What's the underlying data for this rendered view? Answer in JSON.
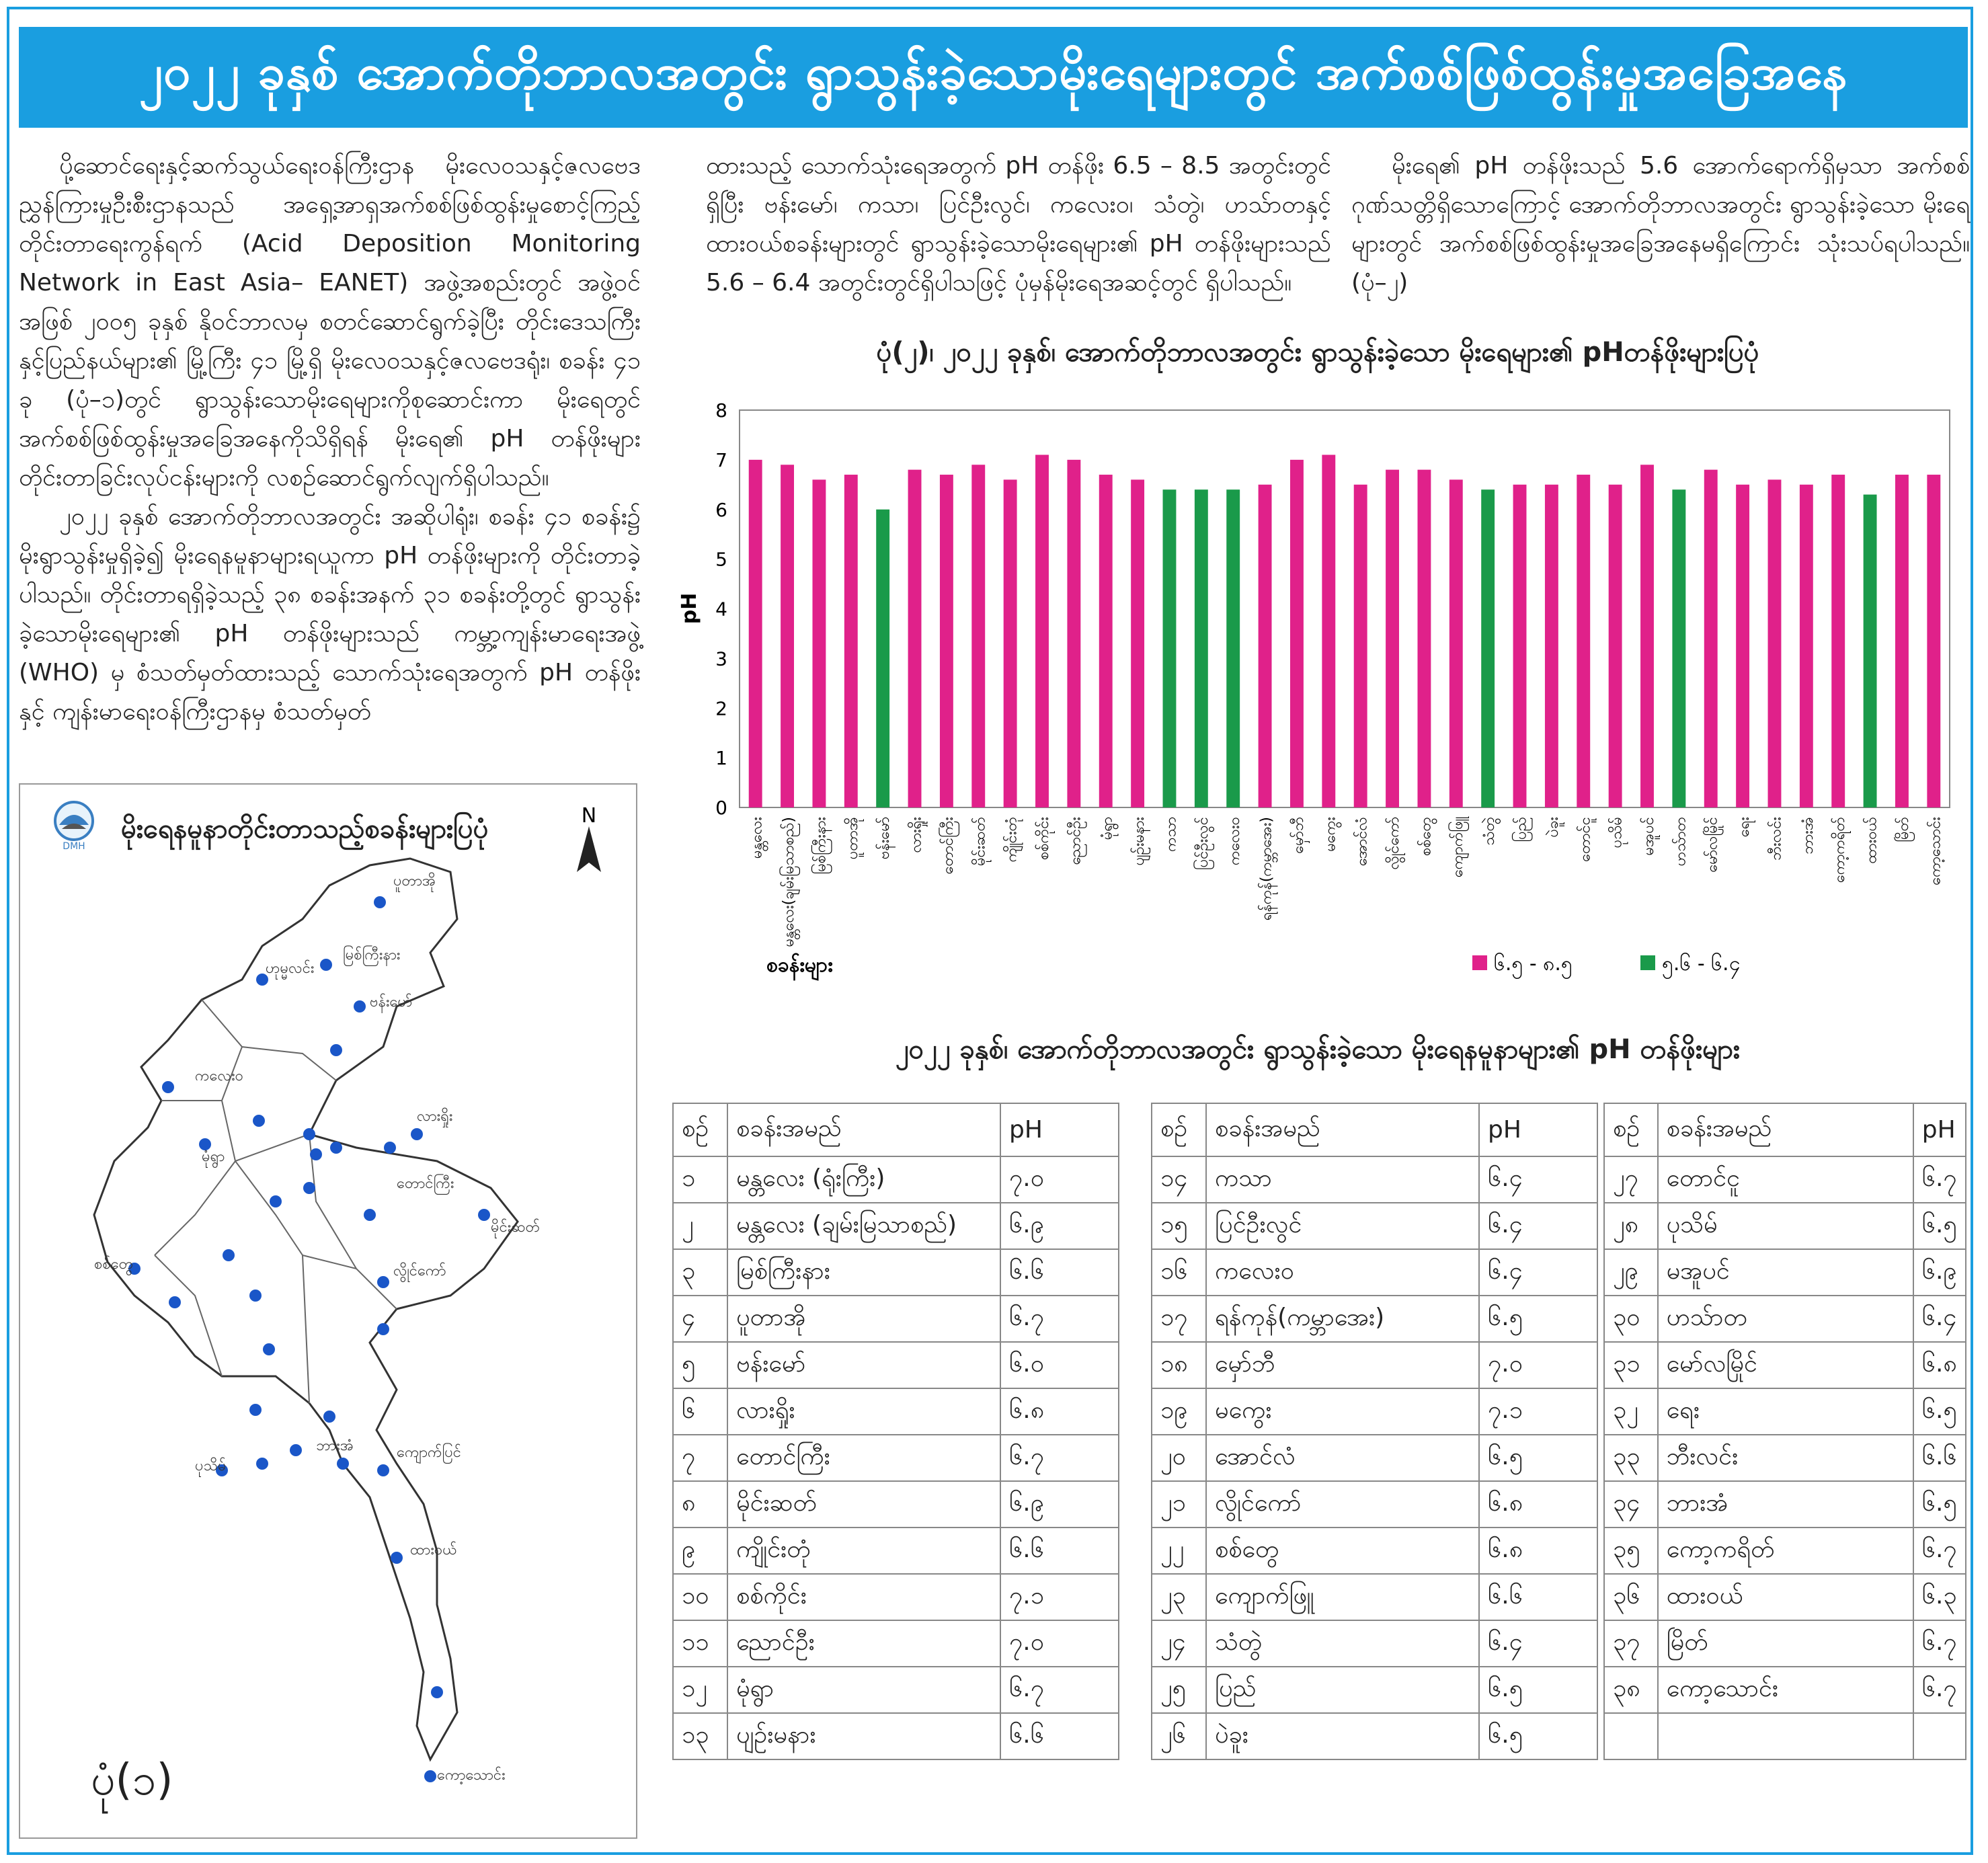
{
  "header": {
    "title": "၂၀၂၂ ခုနှစ်  အောက်တိုဘာလအတွင်း ရွာသွန်းခဲ့သောမိုးရေများတွင် အက်စစ်ဖြစ်ထွန်းမှုအခြေအနေ"
  },
  "article": {
    "col1_p1": "ပို့ဆောင်ရေးနှင့်ဆက်သွယ်ရေးဝန်ကြီးဌာန မိုးလေဝသနှင့်ဇလဗေဒညွှန်ကြားမှုဦးစီးဌာနသည် အရှေ့အာရှအက်စစ်ဖြစ်ထွန်းမှုစောင့်ကြည့်တိုင်းတာရေးကွန်ရက် (Acid Deposition Monitoring Network in East Asia– EANET) အဖွဲ့အစည်းတွင် အဖွဲ့ဝင်အဖြစ် ၂၀၀၅ ခုနှစ် နိုဝင်ဘာလမှ စတင်ဆောင်ရွက်ခဲ့ပြီး တိုင်းဒေသကြီးနှင့်ပြည်နယ်များ၏ မြို့ကြီး ၄၁ မြို့ရှိ မိုးလေဝသနှင့်ဇလဗေဒရုံး၊ စခန်း ၄၁ ခု (ပုံ–၁)တွင် ရွာသွန်းသောမိုးရေများကိုစုဆောင်းကာ မိုးရေတွင် အက်စစ်ဖြစ်ထွန်းမှုအခြေအနေကိုသိရှိရန် မိုးရေ၏ pH တန်ဖိုးများ တိုင်းတာခြင်းလုပ်ငန်းများကို လစဉ်ဆောင်ရွက်လျက်ရှိပါသည်။",
    "col1_p2": "၂၀၂၂ ခုနှစ်  အောက်တိုဘာလအတွင်း အဆိုပါရုံး၊ စခန်း ၄၁ စခန်း၌ မိုးရွာသွန်းမှုရှိခဲ့၍ မိုးရေနမူနာများရယူကာ pH တန်ဖိုးများကို တိုင်းတာခဲ့ပါသည်။ တိုင်းတာရရှိခဲ့သည့် ၃၈ စခန်းအနက် ၃၁ စခန်းတို့တွင် ရွာသွန်းခဲ့သောမိုးရေများ၏ pH တန်ဖိုးများသည် ကမ္ဘာ့ကျန်းမာရေးအဖွဲ့ (WHO) မှ စံသတ်မှတ်ထားသည့် သောက်သုံးရေအတွက် pH တန်ဖိုးနှင့် ကျန်းမာရေးဝန်ကြီးဌာနမှ စံသတ်မှတ်",
    "col2_p1": "ထားသည့် သောက်သုံးရေအတွက် pH တန်ဖိုး 6.5 – 8.5 အတွင်းတွင်ရှိပြီး ဗန်းမော်၊ ကသာ၊ ပြင်ဦးလွင်၊ ကလေးဝ၊ သံတွဲ၊ ဟသ်ာတနှင့် ထားဝယ်စခန်းများတွင် ရွာသွန်းခဲ့သောမိုးရေများ၏ pH တန်ဖိုးများသည် 5.6 – 6.4 အတွင်းတွင်ရှိပါသဖြင့် ပုံမှန်မိုးရေအဆင့်တွင် ရှိပါသည်။",
    "col3_p1": "မိုးရေ၏ pH တန်ဖိုးသည် 5.6 အောက်ရောက်ရှိမှသာ အက်စစ်ဂုဏ်သတ္တိရှိသောကြောင့် အောက်တိုဘာလအတွင်း ရွာသွန်းခဲ့သော မိုးရေများတွင် အက်စစ်ဖြစ်ထွန်းမှုအခြေအနေမရှိကြောင်း သုံးသပ်ရပါသည်။  (ပုံ–၂)"
  },
  "map": {
    "title": "မိုးရေနမူနာတိုင်းတာသည့်စခန်းများပြပုံ",
    "north": "N",
    "logo_text": "DMH",
    "figure_label": "ပုံ(၁)",
    "place_labels": [
      "ပူတာအို",
      "မြစ်ကြီးနား",
      "ဟုမ္မလင်း",
      "ဗန်းမော်",
      "ကလေးဝ",
      "လားရှိုး",
      "မုံရွာ",
      "တောင်ကြီး",
      "မိုင်းဆတ်",
      "လွိုင်ကော်",
      "ပုသိမ်",
      "ကျောက်ပြင်",
      "ထားဝယ်",
      "ကော့သောင်း",
      "ဘားအံ",
      "စစ်တွေ"
    ]
  },
  "chart_data": {
    "type": "bar",
    "title": "ပုံ(၂)၊ ၂၀၂၂ ခုနှစ်၊ အောက်တိုဘာလအတွင်း ရွာသွန်းခဲ့သော မိုးရေများ၏ pHတန်ဖိုးများပြပုံ",
    "xlabel": "စခန်းများ",
    "ylabel": "pH",
    "ylim": [
      0,
      8
    ],
    "yticks": [
      0,
      1,
      2,
      3,
      4,
      5,
      6,
      7,
      8
    ],
    "grid": false,
    "legend_position": "bottom",
    "categories": [
      "မန္တလေး",
      "မန္တလေး(ချမ်းမြသာစည်)",
      "မြစ်ကြီးနား",
      "ပူတာအို",
      "ဗန်းမော်",
      "လားရှိုး",
      "တောင်ကြီး",
      "မိုင်းဆတ်",
      "ကျိုင်းတုံ",
      "စစ်ကိုင်း",
      "ညောင်ဦး",
      "မုံရွာ",
      "ပျဉ်းမနား",
      "ကသာ",
      "ပြင်ဦးလွင်",
      "ကလေးဝ",
      "ရန်ကုန်(ကမ္ဘာအေး)",
      "မှော်ဘီ",
      "မကွေး",
      "အောင်လံ",
      "လွိုင်ကော်",
      "စစ်တွေ",
      "ကျောက်ဖြူ",
      "သံတွဲ",
      "ပြည်",
      "ပဲခူး",
      "တောင်ငူ",
      "ပုသိမ်",
      "မအူပင်",
      "ဟသ်ာတ",
      "မော်လမြိုင်",
      "ရေး",
      "ဘီးလင်း",
      "ဘားအံ",
      "ကော့ကရိတ်",
      "ထားဝယ်",
      "မြိတ်",
      "ကော့သောင်း"
    ],
    "values": [
      7.0,
      6.9,
      6.6,
      6.7,
      6.0,
      6.8,
      6.7,
      6.9,
      6.6,
      7.1,
      7.0,
      6.7,
      6.6,
      6.4,
      6.4,
      6.4,
      6.5,
      7.0,
      7.1,
      6.5,
      6.8,
      6.8,
      6.6,
      6.4,
      6.5,
      6.5,
      6.7,
      6.5,
      6.9,
      6.4,
      6.8,
      6.5,
      6.6,
      6.5,
      6.7,
      6.3,
      6.7,
      6.7
    ],
    "series_group": [
      "a",
      "a",
      "a",
      "a",
      "b",
      "a",
      "a",
      "a",
      "a",
      "a",
      "a",
      "a",
      "a",
      "b",
      "b",
      "b",
      "a",
      "a",
      "a",
      "a",
      "a",
      "a",
      "a",
      "b",
      "a",
      "a",
      "a",
      "a",
      "a",
      "b",
      "a",
      "a",
      "a",
      "a",
      "a",
      "b",
      "a",
      "a"
    ],
    "legend": [
      {
        "key": "a",
        "label": "၆.၅ - ၈.၅",
        "color": "#e0218a"
      },
      {
        "key": "b",
        "label": "၅.၆ - ၆.၄",
        "color": "#1a9a4a"
      }
    ]
  },
  "tables": {
    "title": "၂၀၂၂ ခုနှစ်၊ အောက်တိုဘာလအတွင်း ရွာသွန်းခဲ့သော မိုးရေနမူနာများ၏ pH တန်ဖိုးများ",
    "headers": [
      "စဉ်",
      "စခန်းအမည်",
      "pH"
    ],
    "t1": [
      [
        "၁",
        "မန္တလေး (ရုံးကြီး)",
        "၇.၀"
      ],
      [
        "၂",
        "မန္တလေး (ချမ်းမြသာစည်)",
        "၆.၉"
      ],
      [
        "၃",
        "မြစ်ကြီးနား",
        "၆.၆"
      ],
      [
        "၄",
        "ပူတာအို",
        "၆.၇"
      ],
      [
        "၅",
        "ဗန်းမော်",
        "၆.၀"
      ],
      [
        "၆",
        "လားရှိုး",
        "၆.၈"
      ],
      [
        "၇",
        "တောင်ကြီး",
        "၆.၇"
      ],
      [
        "၈",
        "မိုင်းဆတ်",
        "၆.၉"
      ],
      [
        "၉",
        "ကျိုင်းတုံ",
        "၆.၆"
      ],
      [
        "၁၀",
        "စစ်ကိုင်း",
        "၇.၁"
      ],
      [
        "၁၁",
        "ညောင်ဦး",
        "၇.၀"
      ],
      [
        "၁၂",
        "မုံရွာ",
        "၆.၇"
      ],
      [
        "၁၃",
        "ပျဉ်းမနား",
        "၆.၆"
      ]
    ],
    "t2": [
      [
        "၁၄",
        "ကသာ",
        "၆.၄"
      ],
      [
        "၁၅",
        "ပြင်ဦးလွင်",
        "၆.၄"
      ],
      [
        "၁၆",
        "ကလေးဝ",
        "၆.၄"
      ],
      [
        "၁၇",
        "ရန်ကုန်(ကမ္ဘာအေး)",
        "၆.၅"
      ],
      [
        "၁၈",
        "မှော်ဘီ",
        "၇.၀"
      ],
      [
        "၁၉",
        "မကွေး",
        "၇.၁"
      ],
      [
        "၂၀",
        "အောင်လံ",
        "၆.၅"
      ],
      [
        "၂၁",
        "လွိုင်ကော်",
        "၆.၈"
      ],
      [
        "၂၂",
        "စစ်တွေ",
        "၆.၈"
      ],
      [
        "၂၃",
        "ကျောက်ဖြူ",
        "၆.၆"
      ],
      [
        "၂၄",
        "သံတွဲ",
        "၆.၄"
      ],
      [
        "၂၅",
        "ပြည်",
        "၆.၅"
      ],
      [
        "၂၆",
        "ပဲခူး",
        "၆.၅"
      ]
    ],
    "t3": [
      [
        "၂၇",
        "တောင်ငူ",
        "၆.၇"
      ],
      [
        "၂၈",
        "ပုသိမ်",
        "၆.၅"
      ],
      [
        "၂၉",
        "မအူပင်",
        "၆.၉"
      ],
      [
        "၃၀",
        "ဟသ်ာတ",
        "၆.၄"
      ],
      [
        "၃၁",
        "မော်လမြိုင်",
        "၆.၈"
      ],
      [
        "၃၂",
        "ရေး",
        "၆.၅"
      ],
      [
        "၃၃",
        "ဘီးလင်း",
        "၆.၆"
      ],
      [
        "၃၄",
        "ဘားအံ",
        "၆.၅"
      ],
      [
        "၃၅",
        "ကော့ကရိတ်",
        "၆.၇"
      ],
      [
        "၃၆",
        "ထားဝယ်",
        "၆.၃"
      ],
      [
        "၃၇",
        "မြိတ်",
        "၆.၇"
      ],
      [
        "၃၈",
        "ကော့သောင်း",
        "၆.၇"
      ],
      [
        "",
        "",
        ""
      ]
    ]
  }
}
